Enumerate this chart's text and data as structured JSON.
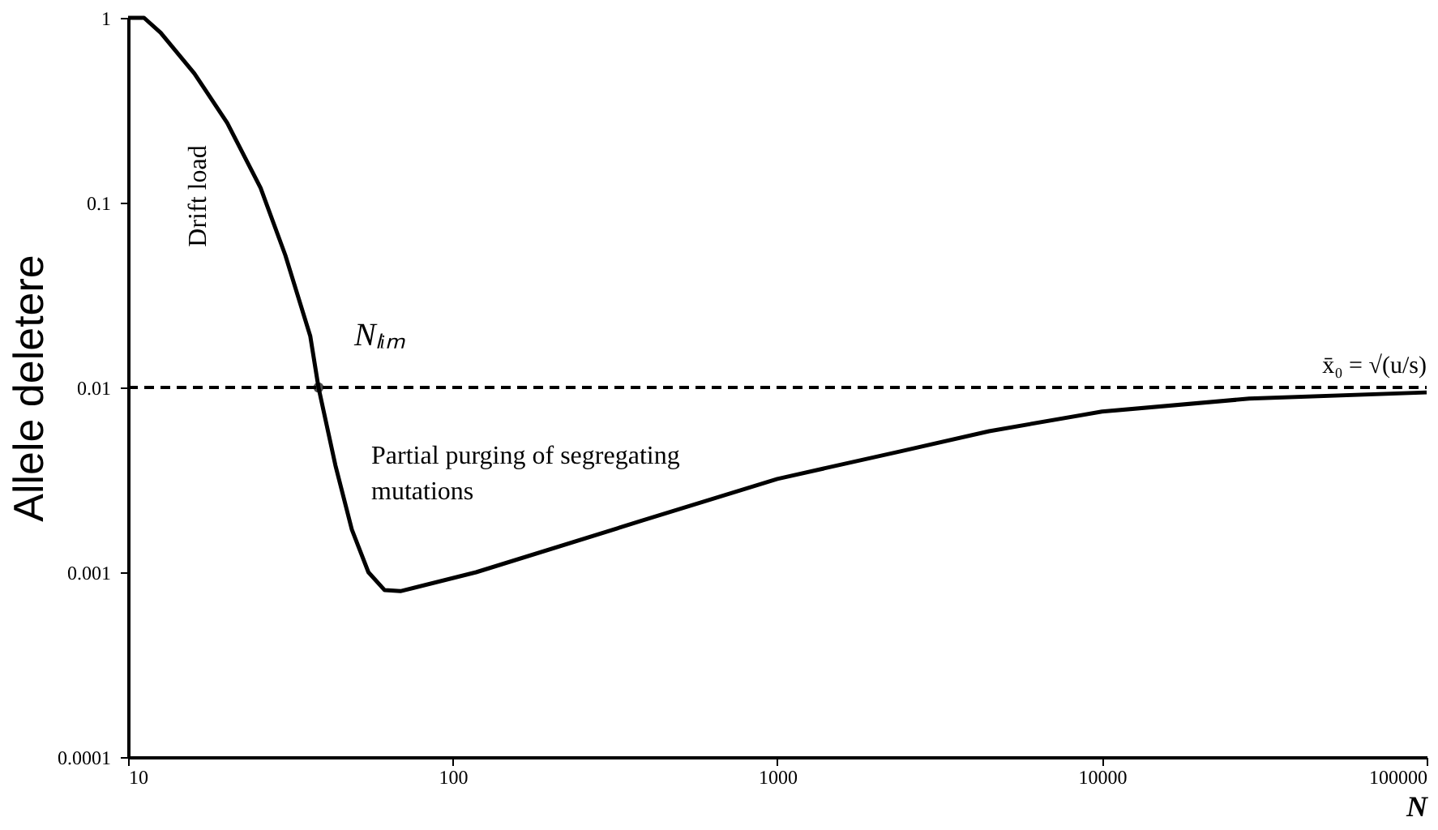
{
  "chart_data": {
    "type": "line",
    "xlabel": "N",
    "ylabel": "Allele deletere",
    "log": "xy",
    "grid": false,
    "line_style": "solid",
    "marker": "none",
    "x": [
      10,
      11.2,
      12.6,
      16,
      20.2,
      25.6,
      30.5,
      36.4,
      38.6,
      43.5,
      48.9,
      55,
      61.7,
      69,
      118,
      382,
      1000,
      2377,
      4490,
      10000,
      28400,
      100000
    ],
    "series": [
      {
        "color": "#000000",
        "values": [
          1,
          1,
          0.83,
          0.5,
          0.27,
          0.12,
          0.052,
          0.019,
          0.01,
          0.0038,
          0.0017,
          0.001,
          0.0008,
          0.00079,
          0.001,
          0.0019,
          0.0032,
          0.0045,
          0.0058,
          0.0074,
          0.0087,
          0.0094
        ]
      }
    ],
    "xlim": [
      10,
      100000
    ],
    "xticks": [
      10,
      100,
      1000,
      10000,
      100000
    ],
    "ylim": [
      0.0001,
      1
    ],
    "yticks": [
      0.0001,
      0.001,
      0.01,
      0.1,
      1
    ],
    "ref_lines": [
      {
        "axis": "y",
        "value": 0.01,
        "label": "x̄₀ = √(u/s)",
        "line_style": "dashed",
        "color": "#000000"
      }
    ],
    "annotations": [
      "Drift load",
      {
        "text": "Nₗᵢₘ",
        "x": 38.6,
        "y": 0.01
      },
      "Partial purging of segregating mutations"
    ]
  }
}
